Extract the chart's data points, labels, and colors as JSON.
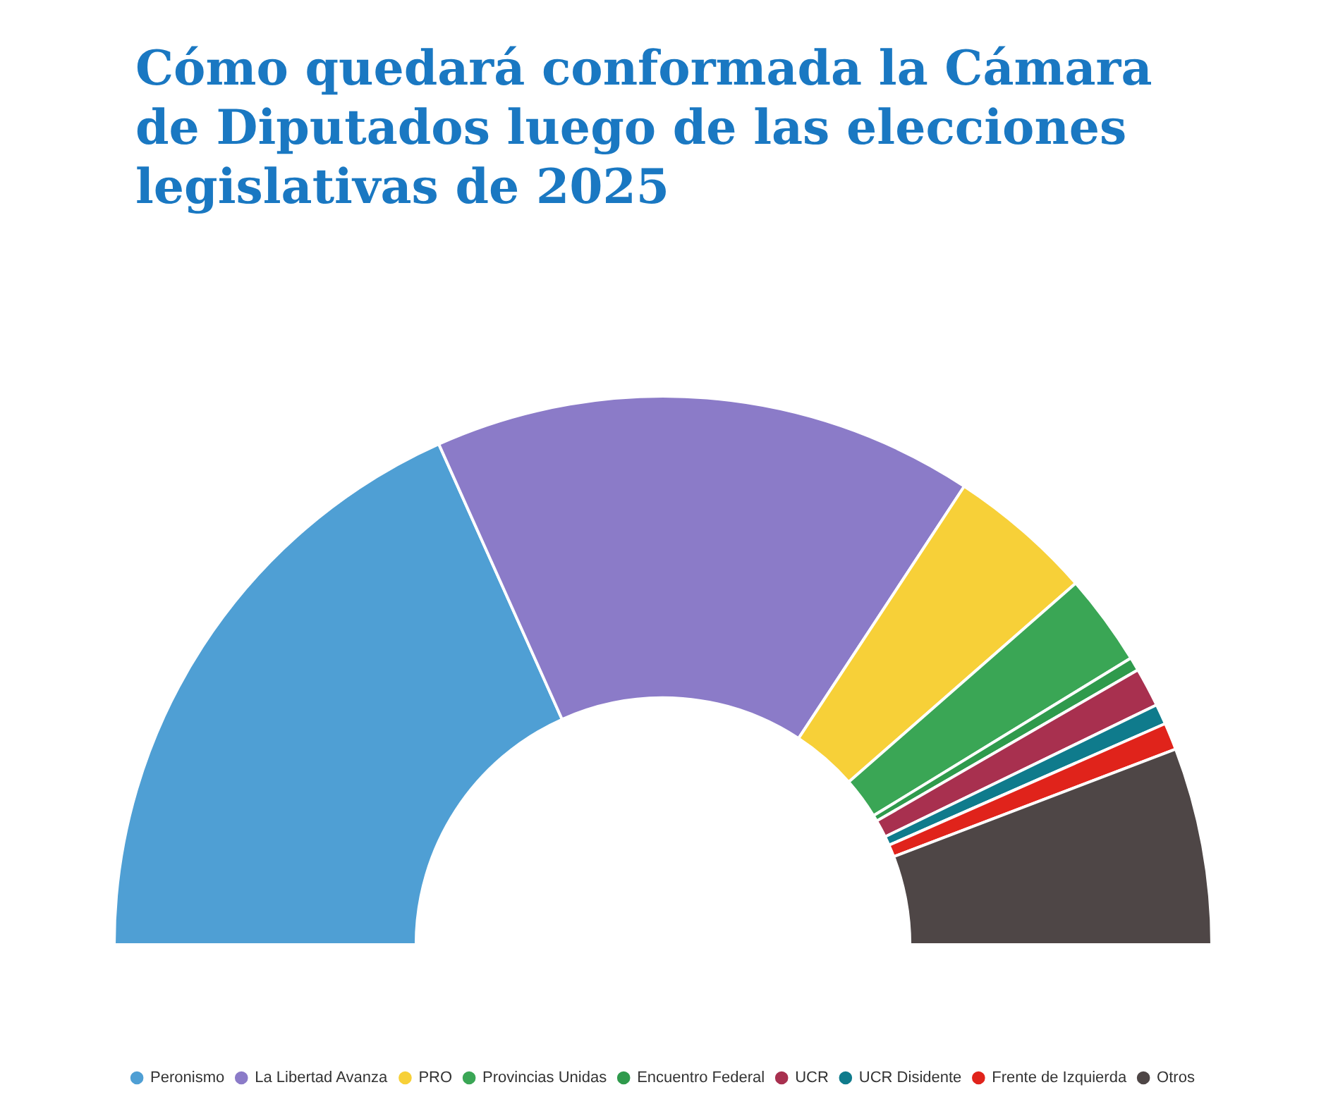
{
  "chart_data": {
    "type": "donut",
    "title": "Cómo quedará conformada la Cámara de Diputados luego de las elecciones legislativas de 2025",
    "categories": [
      "Peronismo",
      "La Libertad Avanza",
      "PRO",
      "Provincias Unidas",
      "Encuentro Federal",
      "UCR",
      "UCR Disidente",
      "Frente de Izquierda",
      "Otros"
    ],
    "values": [
      36.6,
      31.9,
      8.6,
      5.4,
      0.8,
      2.3,
      1.2,
      1.6,
      11.6
    ],
    "colors": [
      "#4f9fd4",
      "#8b7bc8",
      "#f7d038",
      "#3aa655",
      "#2f9a4c",
      "#a8304f",
      "#0f7b8c",
      "#e0231b",
      "#4e4646"
    ],
    "legend": "bottom"
  }
}
